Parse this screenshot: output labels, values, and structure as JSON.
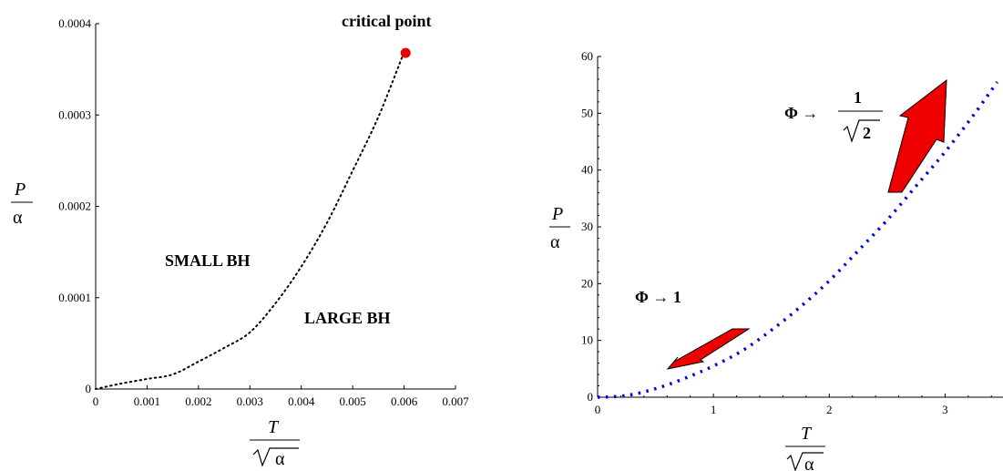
{
  "chart_data": [
    {
      "type": "line",
      "xlim": [
        0,
        0.007
      ],
      "ylim": [
        0,
        0.0004
      ],
      "x_ticks": [
        "0",
        "0.001",
        "0.002",
        "0.003",
        "0.004",
        "0.005",
        "0.006",
        "0.007"
      ],
      "y_ticks": [
        "0",
        "0.0001",
        "0.0002",
        "0.0003",
        "0.0004"
      ],
      "xlabel": {
        "numerator": "T",
        "denominator": "α"
      },
      "ylabel": {
        "numerator": "P",
        "denominator": "α"
      },
      "series": [
        {
          "style": "dotted",
          "color": "#000000",
          "x": [
            0,
            0.0005,
            0.001,
            0.0015,
            0.002,
            0.0025,
            0.003,
            0.0035,
            0.004,
            0.0045,
            0.005,
            0.0055,
            0.006
          ],
          "y": [
            0,
            6e-06,
            1.1e-05,
            1.6e-05,
            3e-05,
            4.5e-05,
            6.2e-05,
            9.4e-05,
            0.000134,
            0.000182,
            0.000239,
            0.000298,
            0.000369
          ]
        }
      ],
      "critical_point": {
        "x": 0.00603,
        "y": 0.000368,
        "color": "#e30000",
        "label": "critical point"
      },
      "annotations": [
        "SMALL BH",
        "LARGE BH"
      ]
    },
    {
      "type": "line",
      "xlim": [
        0,
        3.5
      ],
      "ylim": [
        0,
        60
      ],
      "x_ticks": [
        "0",
        "1",
        "2",
        "3"
      ],
      "y_ticks": [
        "0",
        "10",
        "20",
        "30",
        "40",
        "50",
        "60"
      ],
      "xlabel": {
        "numerator": "T",
        "denominator": "α"
      },
      "ylabel": {
        "numerator": "P",
        "denominator": "α"
      },
      "series": [
        {
          "style": "dotted",
          "color": "#0000e0",
          "x": [
            0,
            0.25,
            0.5,
            0.75,
            1,
            1.25,
            1.5,
            1.75,
            2,
            2.25,
            2.5,
            2.75,
            3,
            3.25,
            3.45
          ],
          "y": [
            0,
            0.3,
            1.5,
            3.3,
            5.5,
            8.2,
            11.8,
            15.9,
            20.5,
            25.8,
            31.2,
            37.2,
            43.2,
            49.8,
            55.5
          ]
        }
      ],
      "annotations": {
        "low": {
          "text": "Φ → 1"
        },
        "high": {
          "prefix": "Φ →",
          "numerator": "1",
          "radicand": "2"
        }
      },
      "arrow_color": "#ee0000"
    }
  ]
}
